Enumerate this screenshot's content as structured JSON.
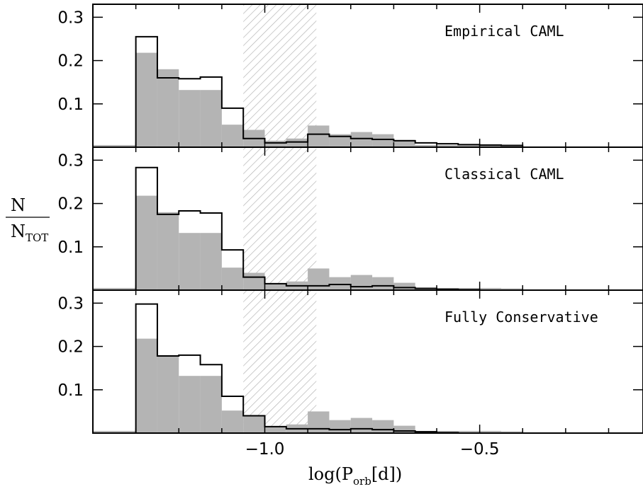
{
  "chart_data": {
    "type": "histogram",
    "xlabel": {
      "main": "log(P",
      "sub": "orb",
      "rest": "[d])"
    },
    "ylabel": {
      "numerator": "N",
      "denominator": "N",
      "denominator_sub": "TOT"
    },
    "xlim": [
      -1.4,
      -0.12
    ],
    "ylim": [
      0,
      0.33
    ],
    "x_ticks": [
      -1.0,
      -0.5
    ],
    "x_tick_labels": [
      "−1.0",
      "−0.5"
    ],
    "y_ticks": [
      0.1,
      0.2,
      0.3
    ],
    "y_tick_labels": [
      "0.1",
      "0.2",
      "0.3"
    ],
    "excluded_region": [
      -1.05,
      -0.88
    ],
    "bin_edges": [
      -1.4,
      -1.3,
      -1.25,
      -1.2,
      -1.15,
      -1.1,
      -1.05,
      -1.0,
      -0.95,
      -0.9,
      -0.85,
      -0.8,
      -0.75,
      -0.7,
      -0.65,
      -0.6,
      -0.55,
      -0.5,
      -0.45,
      -0.4
    ],
    "observed": [
      0.005,
      0.218,
      0.18,
      0.132,
      0.132,
      0.052,
      0.04,
      0.015,
      0.02,
      0.05,
      0.03,
      0.035,
      0.03,
      0.017,
      0.005,
      0.005,
      0.005,
      0.005,
      0.004
    ],
    "panels": [
      {
        "label": "Empirical CAML",
        "values": [
          0,
          0.255,
          0.16,
          0.158,
          0.162,
          0.09,
          0.02,
          0.01,
          0.012,
          0.03,
          0.025,
          0.02,
          0.018,
          0.015,
          0.01,
          0.008,
          0.006,
          0.005,
          0.004
        ]
      },
      {
        "label": "Classical CAML",
        "values": [
          0,
          0.283,
          0.175,
          0.183,
          0.178,
          0.093,
          0.03,
          0.015,
          0.01,
          0.01,
          0.013,
          0.008,
          0.01,
          0.006,
          0.004,
          0.002,
          0.001,
          0,
          0
        ]
      },
      {
        "label": "Fully Conservative",
        "values": [
          0,
          0.298,
          0.178,
          0.18,
          0.158,
          0.085,
          0.04,
          0.015,
          0.01,
          0.01,
          0.008,
          0.01,
          0.008,
          0.005,
          0.003,
          0.001,
          0,
          0,
          0
        ]
      }
    ]
  }
}
